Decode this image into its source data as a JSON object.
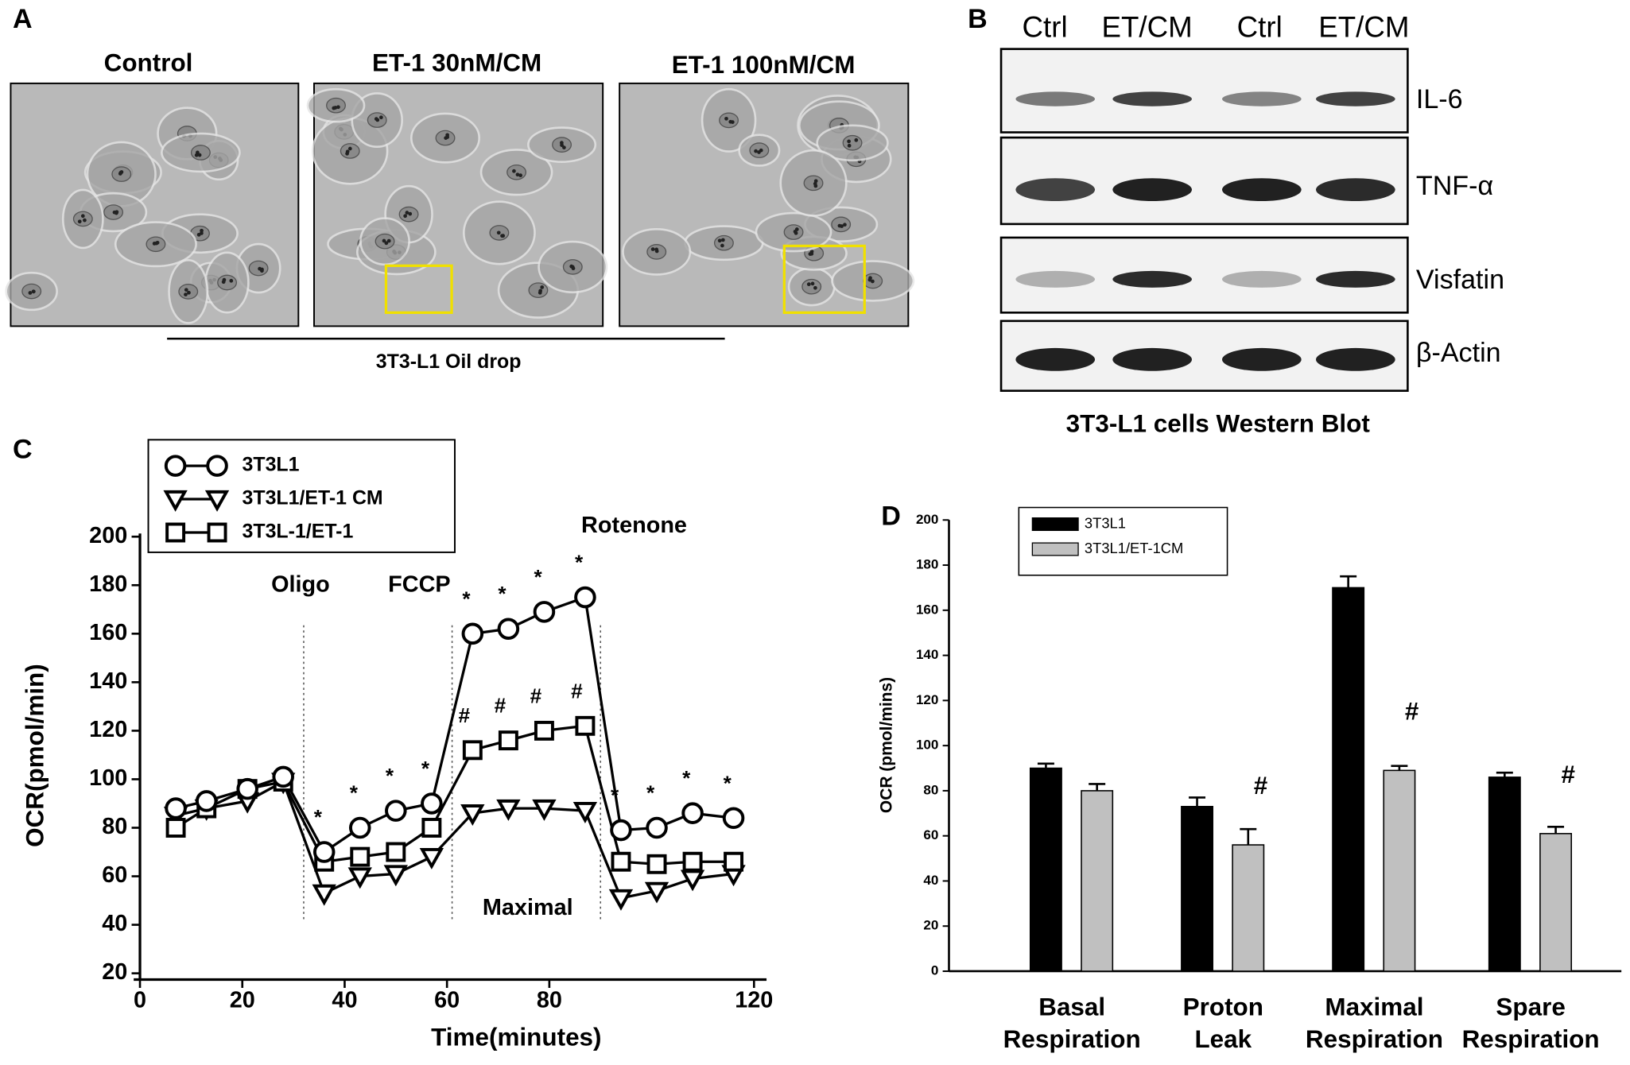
{
  "panels": {
    "a": {
      "letter": "A",
      "titles": [
        "Control",
        "ET-1 30nM/CM",
        "ET-1 100nM/CM"
      ],
      "caption": "3T3-L1 Oil drop"
    },
    "b": {
      "letter": "B",
      "lanes": [
        "Ctrl",
        "ET/CM",
        "Ctrl",
        "ET/CM"
      ],
      "proteins": [
        "IL-6",
        "TNF-α",
        "Visfatin",
        "β-Actin"
      ],
      "caption": "3T3-L1 cells Western Blot"
    }
  },
  "chart_data": [
    {
      "type": "line",
      "letter": "C",
      "xlabel": "Time(minutes)",
      "ylabel": "OCR(pmol/min)",
      "x": [
        7,
        13,
        21,
        28,
        36,
        43,
        50,
        57,
        65,
        72,
        79,
        87,
        94,
        101,
        108,
        116
      ],
      "xlim": [
        0,
        120
      ],
      "xticks": [
        0,
        20,
        40,
        60,
        80,
        120
      ],
      "ylim": [
        20,
        200
      ],
      "yticks": [
        20,
        40,
        60,
        80,
        100,
        120,
        140,
        160,
        180,
        200
      ],
      "series": [
        {
          "name": "3T3L1",
          "marker": "circle",
          "color": "#000000",
          "values": [
            88,
            91,
            96,
            101,
            70,
            80,
            87,
            90,
            160,
            162,
            169,
            175,
            79,
            80,
            86,
            84
          ]
        },
        {
          "name": "3T3L1/ET-1 CM",
          "marker": "triangle",
          "color": "#000000",
          "values": [
            85,
            88,
            91,
            99,
            53,
            60,
            61,
            68,
            86,
            88,
            88,
            87,
            51,
            54,
            59,
            61
          ]
        },
        {
          "name": "3T3L-1/ET-1",
          "marker": "square",
          "color": "#000000",
          "values": [
            80,
            88,
            96,
            99,
            66,
            68,
            70,
            80,
            112,
            116,
            120,
            122,
            66,
            65,
            66,
            66
          ]
        }
      ],
      "phase_labels": [
        "Oligo",
        "FCCP",
        "Rotenone",
        "Maximal"
      ],
      "injections": [
        32,
        61,
        90
      ],
      "annotations": [
        {
          "text": "*",
          "series": 0,
          "indices": [
            4,
            5,
            6,
            7,
            8,
            9,
            10,
            11,
            12,
            13,
            14,
            15
          ]
        },
        {
          "text": "#",
          "series": 2,
          "indices": [
            8,
            9,
            10,
            11
          ]
        }
      ]
    },
    {
      "type": "bar",
      "letter": "D",
      "ylabel": "OCR (pmol/mins)",
      "categories": [
        [
          "Basal",
          "Respiration"
        ],
        [
          "Proton",
          "Leak"
        ],
        [
          "Maximal",
          "Respiration"
        ],
        [
          "Spare",
          "Respiration"
        ]
      ],
      "ylim": [
        0,
        200
      ],
      "yticks": [
        0,
        20,
        40,
        60,
        80,
        100,
        120,
        140,
        160,
        180,
        200
      ],
      "series": [
        {
          "name": "3T3L1",
          "color": "#000000",
          "values": [
            90,
            73,
            170,
            86
          ],
          "errors": [
            2,
            4,
            5,
            2
          ]
        },
        {
          "name": "3T3L1/ET-1CM",
          "color": "#c0c0c0",
          "values": [
            80,
            56,
            89,
            61
          ],
          "errors": [
            3,
            7,
            2,
            3
          ]
        }
      ],
      "annotations": [
        {
          "text": "#",
          "series": 1,
          "indices": [
            1,
            2,
            3
          ]
        }
      ]
    }
  ]
}
